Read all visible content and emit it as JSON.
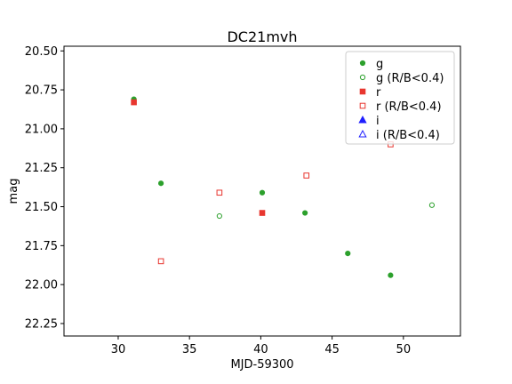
{
  "chart_data": {
    "type": "scatter",
    "title": "DC21mvh",
    "xlabel": "MJD-59300",
    "ylabel": "mag",
    "xlim": [
      26.2,
      54.0
    ],
    "ylim": [
      22.33,
      20.47
    ],
    "y_inverted": true,
    "xticks": [
      30,
      35,
      40,
      45,
      50
    ],
    "yticks": [
      20.5,
      20.75,
      21.0,
      21.25,
      21.5,
      21.75,
      22.0,
      22.25
    ],
    "xtick_labels": [
      "30",
      "35",
      "40",
      "45",
      "50"
    ],
    "ytick_labels": [
      "20.50",
      "20.75",
      "21.00",
      "21.25",
      "21.50",
      "21.75",
      "22.00",
      "22.25"
    ],
    "grid": false,
    "legend_position": "top-right",
    "series": [
      {
        "name": "g",
        "marker": "circle",
        "filled": true,
        "color": "#2ca02c",
        "points": [
          [
            31.1,
            20.81
          ],
          [
            33.0,
            21.35
          ],
          [
            40.1,
            21.41
          ],
          [
            43.1,
            21.54
          ],
          [
            46.1,
            21.8
          ],
          [
            49.1,
            21.94
          ]
        ]
      },
      {
        "name": "g (R/B<0.4)",
        "marker": "circle",
        "filled": false,
        "color": "#2ca02c",
        "points": [
          [
            37.1,
            21.56
          ],
          [
            52.0,
            21.49
          ]
        ]
      },
      {
        "name": "r",
        "marker": "square",
        "filled": true,
        "color": "#e8362f",
        "points": [
          [
            31.1,
            20.83
          ],
          [
            40.1,
            21.54
          ]
        ]
      },
      {
        "name": "r (R/B<0.4)",
        "marker": "square",
        "filled": false,
        "color": "#e8362f",
        "points": [
          [
            33.0,
            21.85
          ],
          [
            37.1,
            21.41
          ],
          [
            43.2,
            21.3
          ],
          [
            49.1,
            21.1
          ]
        ]
      },
      {
        "name": "i",
        "marker": "triangle",
        "filled": true,
        "color": "#1f1fff",
        "points": []
      },
      {
        "name": "i (R/B<0.4)",
        "marker": "triangle",
        "filled": false,
        "color": "#1f1fff",
        "points": []
      }
    ]
  }
}
